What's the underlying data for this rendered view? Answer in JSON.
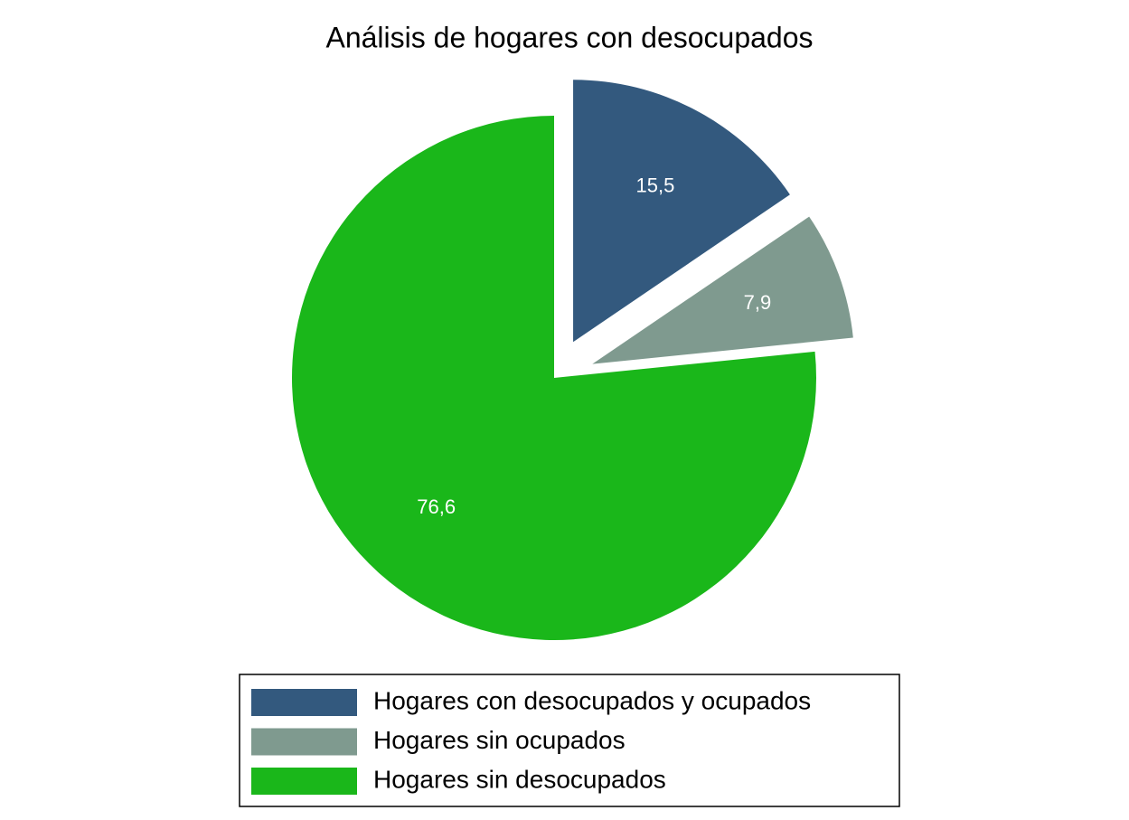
{
  "chart_data": {
    "type": "pie",
    "title": "Análisis de hogares con desocupados",
    "series": [
      {
        "name": "Hogares con desocupados y ocupados",
        "color": "#33597e",
        "values": [
          15.5
        ],
        "value_labels": [
          "15,5"
        ]
      },
      {
        "name": "Hogares sin ocupados",
        "color": "#7f9a8f",
        "values": [
          7.9
        ],
        "value_labels": [
          "7,9"
        ]
      },
      {
        "name": "Hogares sin desocupados",
        "color": "#1ab71a",
        "values": [
          76.6
        ],
        "value_labels": [
          "76,6"
        ]
      }
    ],
    "explode": [
      true,
      true,
      false
    ],
    "legend": "bottom"
  }
}
